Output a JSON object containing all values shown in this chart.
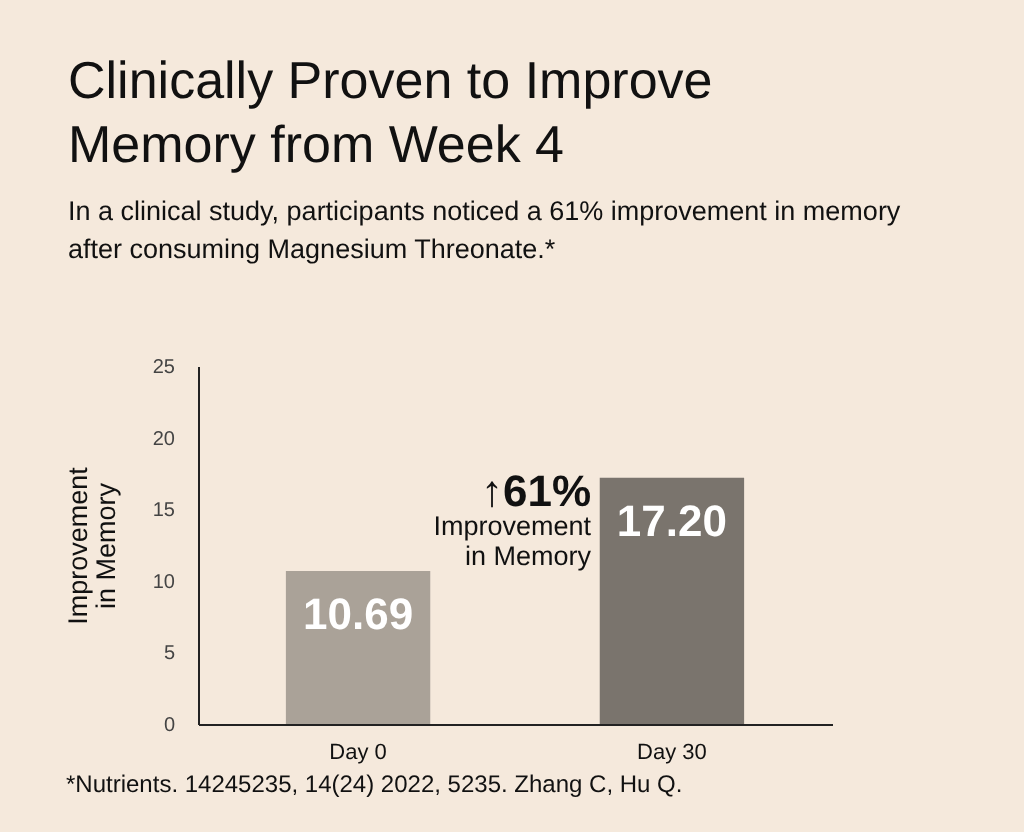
{
  "chart_data": {
    "type": "bar",
    "title": "Clinically Proven to Improve Memory from Week 4",
    "subtitle": "In a clinical study, participants noticed a 61% improvement in memory after consuming Magnesium Threonate.*",
    "ylabel": "Improvement\nin Memory",
    "categories": [
      "Day 0",
      "Day 30"
    ],
    "values": [
      10.69,
      17.2
    ],
    "colors": [
      "#aaa298",
      "#7a746d"
    ],
    "value_labels": [
      "10.69",
      "17.20"
    ],
    "ylim": [
      0,
      25
    ],
    "yticks": [
      0,
      5,
      10,
      15,
      20,
      25
    ],
    "grid": false,
    "annotations": [
      "↑61%",
      "Improvement\nin Memory",
      "*Nutrients. 14245235, 14(24) 2022, 5235. Zhang C, Hu Q."
    ]
  }
}
